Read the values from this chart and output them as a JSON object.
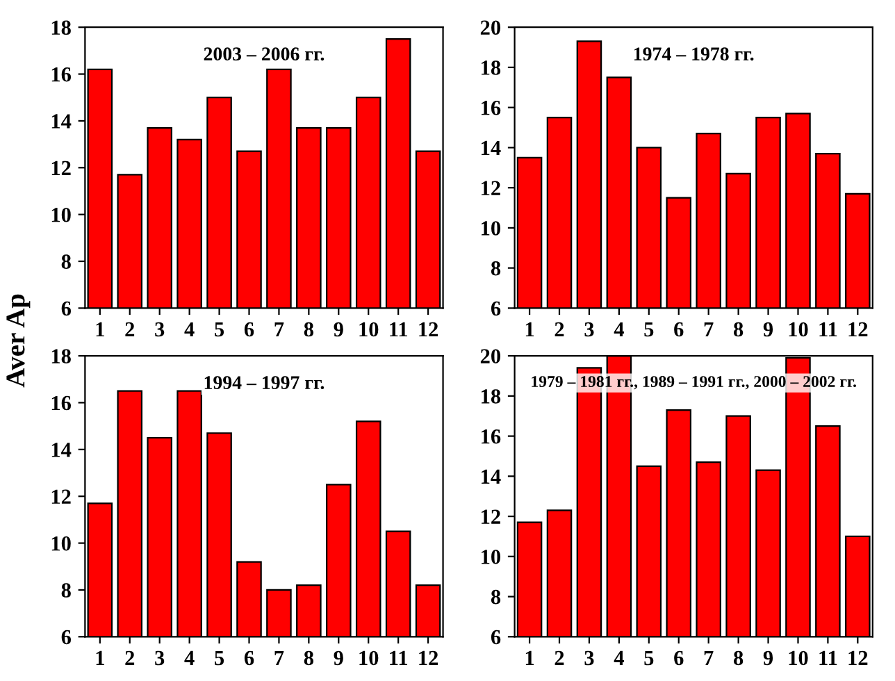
{
  "chart_data": [
    {
      "type": "bar",
      "title": "2003 – 2006 гг.",
      "ylabel": "Aver Ap",
      "categories": [
        "1",
        "2",
        "3",
        "4",
        "5",
        "6",
        "7",
        "8",
        "9",
        "10",
        "11",
        "12"
      ],
      "values": [
        16.2,
        11.7,
        13.7,
        13.2,
        15.0,
        12.7,
        16.2,
        13.7,
        13.7,
        15.0,
        17.5,
        12.7
      ],
      "color": "#ff0000",
      "ylim": [
        6,
        18
      ],
      "yticks": [
        6,
        8,
        10,
        12,
        14,
        16,
        18
      ]
    },
    {
      "type": "bar",
      "title": "1974 – 1978 гг.",
      "categories": [
        "1",
        "2",
        "3",
        "4",
        "5",
        "6",
        "7",
        "8",
        "9",
        "10",
        "11",
        "12"
      ],
      "values": [
        13.5,
        15.5,
        19.3,
        17.5,
        14.0,
        11.5,
        14.7,
        12.7,
        15.5,
        15.7,
        13.7,
        11.7
      ],
      "color": "#ff0000",
      "ylim": [
        6,
        20
      ],
      "yticks": [
        6,
        8,
        10,
        12,
        14,
        16,
        18,
        20
      ]
    },
    {
      "type": "bar",
      "title": "1994 – 1997 гг.",
      "categories": [
        "1",
        "2",
        "3",
        "4",
        "5",
        "6",
        "7",
        "8",
        "9",
        "10",
        "11",
        "12"
      ],
      "values": [
        11.7,
        16.5,
        14.5,
        16.5,
        14.7,
        9.2,
        8.0,
        8.2,
        12.5,
        15.2,
        10.5,
        8.2
      ],
      "color": "#ff0000",
      "ylim": [
        6,
        18
      ],
      "yticks": [
        6,
        8,
        10,
        12,
        14,
        16,
        18
      ]
    },
    {
      "type": "bar",
      "title": "1979 – 1981 гг., 1989 – 1991 гг., 2000 – 2002 гг.",
      "categories": [
        "1",
        "2",
        "3",
        "4",
        "5",
        "6",
        "7",
        "8",
        "9",
        "10",
        "11",
        "12"
      ],
      "values": [
        11.7,
        12.3,
        19.4,
        20.0,
        14.5,
        17.3,
        14.7,
        17.0,
        14.3,
        19.9,
        16.5,
        11.0
      ],
      "color": "#ff0000",
      "ylim": [
        6,
        20
      ],
      "yticks": [
        6,
        8,
        10,
        12,
        14,
        16,
        18,
        20
      ]
    }
  ]
}
